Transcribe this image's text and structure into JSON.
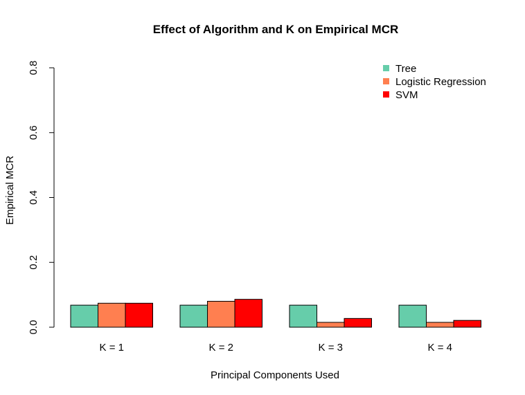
{
  "chart_data": {
    "type": "bar",
    "title": "Effect of Algorithm and K on Empirical MCR",
    "xlabel": "Principal Components Used",
    "ylabel": "Empirical MCR",
    "categories": [
      "K = 1",
      "K = 2",
      "K = 3",
      "K = 4"
    ],
    "series": [
      {
        "name": "Tree",
        "color": "#66CDAA",
        "values": [
          0.068,
          0.068,
          0.068,
          0.068
        ]
      },
      {
        "name": "Logistic Regression",
        "color": "#FF7F50",
        "values": [
          0.074,
          0.08,
          0.015,
          0.015
        ]
      },
      {
        "name": "SVM",
        "color": "#FF0000",
        "values": [
          0.074,
          0.086,
          0.027,
          0.021
        ]
      }
    ],
    "ylim": [
      0,
      0.8
    ],
    "yticks": [
      "0.0",
      "0.2",
      "0.4",
      "0.6",
      "0.8"
    ],
    "legend_position": "top-right",
    "grid": false
  }
}
